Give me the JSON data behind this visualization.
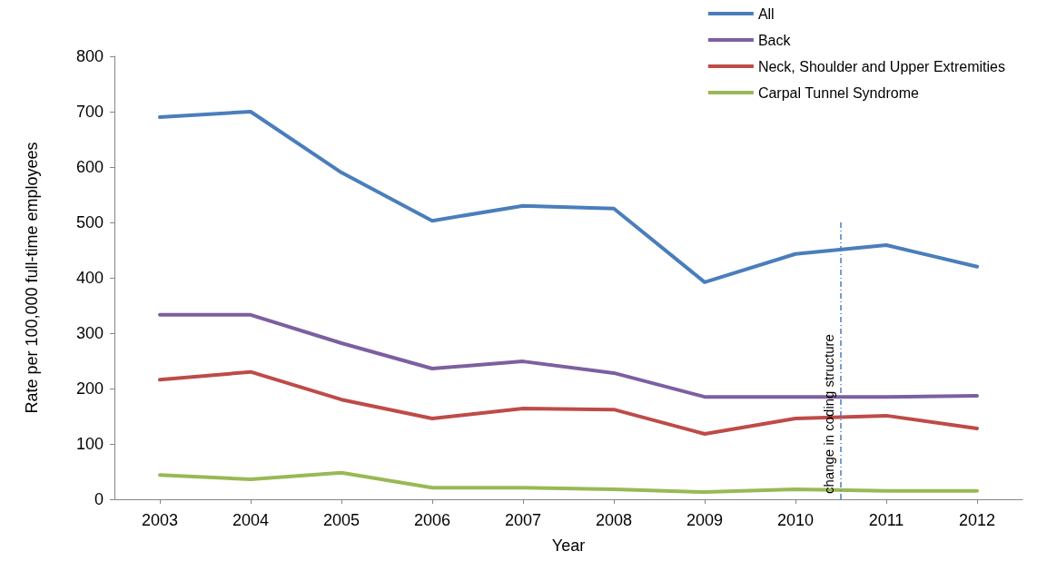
{
  "chart_data": {
    "type": "line",
    "xlabel": "Year",
    "ylabel": "Rate per 100,000 full-time employees",
    "x": [
      2003,
      2004,
      2005,
      2006,
      2007,
      2008,
      2009,
      2010,
      2011,
      2012
    ],
    "xlim": [
      2002.5,
      2012.5
    ],
    "xticks": [
      2003,
      2004,
      2005,
      2006,
      2007,
      2008,
      2009,
      2010,
      2011,
      2012
    ],
    "ylim": [
      0,
      800
    ],
    "yticks": [
      0,
      100,
      200,
      300,
      400,
      500,
      600,
      700,
      800
    ],
    "series": [
      {
        "name": "All",
        "color": "#4a7ebb",
        "values": [
          690,
          700,
          590,
          503,
          530,
          525,
          392,
          443,
          459,
          420
        ]
      },
      {
        "name": "Back",
        "color": "#7d5fa0",
        "values": [
          333,
          333,
          282,
          236,
          249,
          228,
          185,
          185,
          185,
          187
        ]
      },
      {
        "name": "Neck, Shoulder and Upper Extremities",
        "color": "#be4b48",
        "values": [
          216,
          230,
          180,
          146,
          164,
          162,
          118,
          146,
          151,
          128
        ]
      },
      {
        "name": "Carpal Tunnel Syndrome",
        "color": "#98b954",
        "values": [
          44,
          36,
          48,
          21,
          21,
          18,
          13,
          18,
          15,
          15
        ]
      }
    ],
    "ref_lines": [
      {
        "axis": "x",
        "value": 2010.5,
        "label": "change in coding structure",
        "color": "#4a7ebb",
        "line_style": "dashed"
      }
    ],
    "grid": false,
    "legend": "top right",
    "marker": "none",
    "line_style": "solid"
  }
}
